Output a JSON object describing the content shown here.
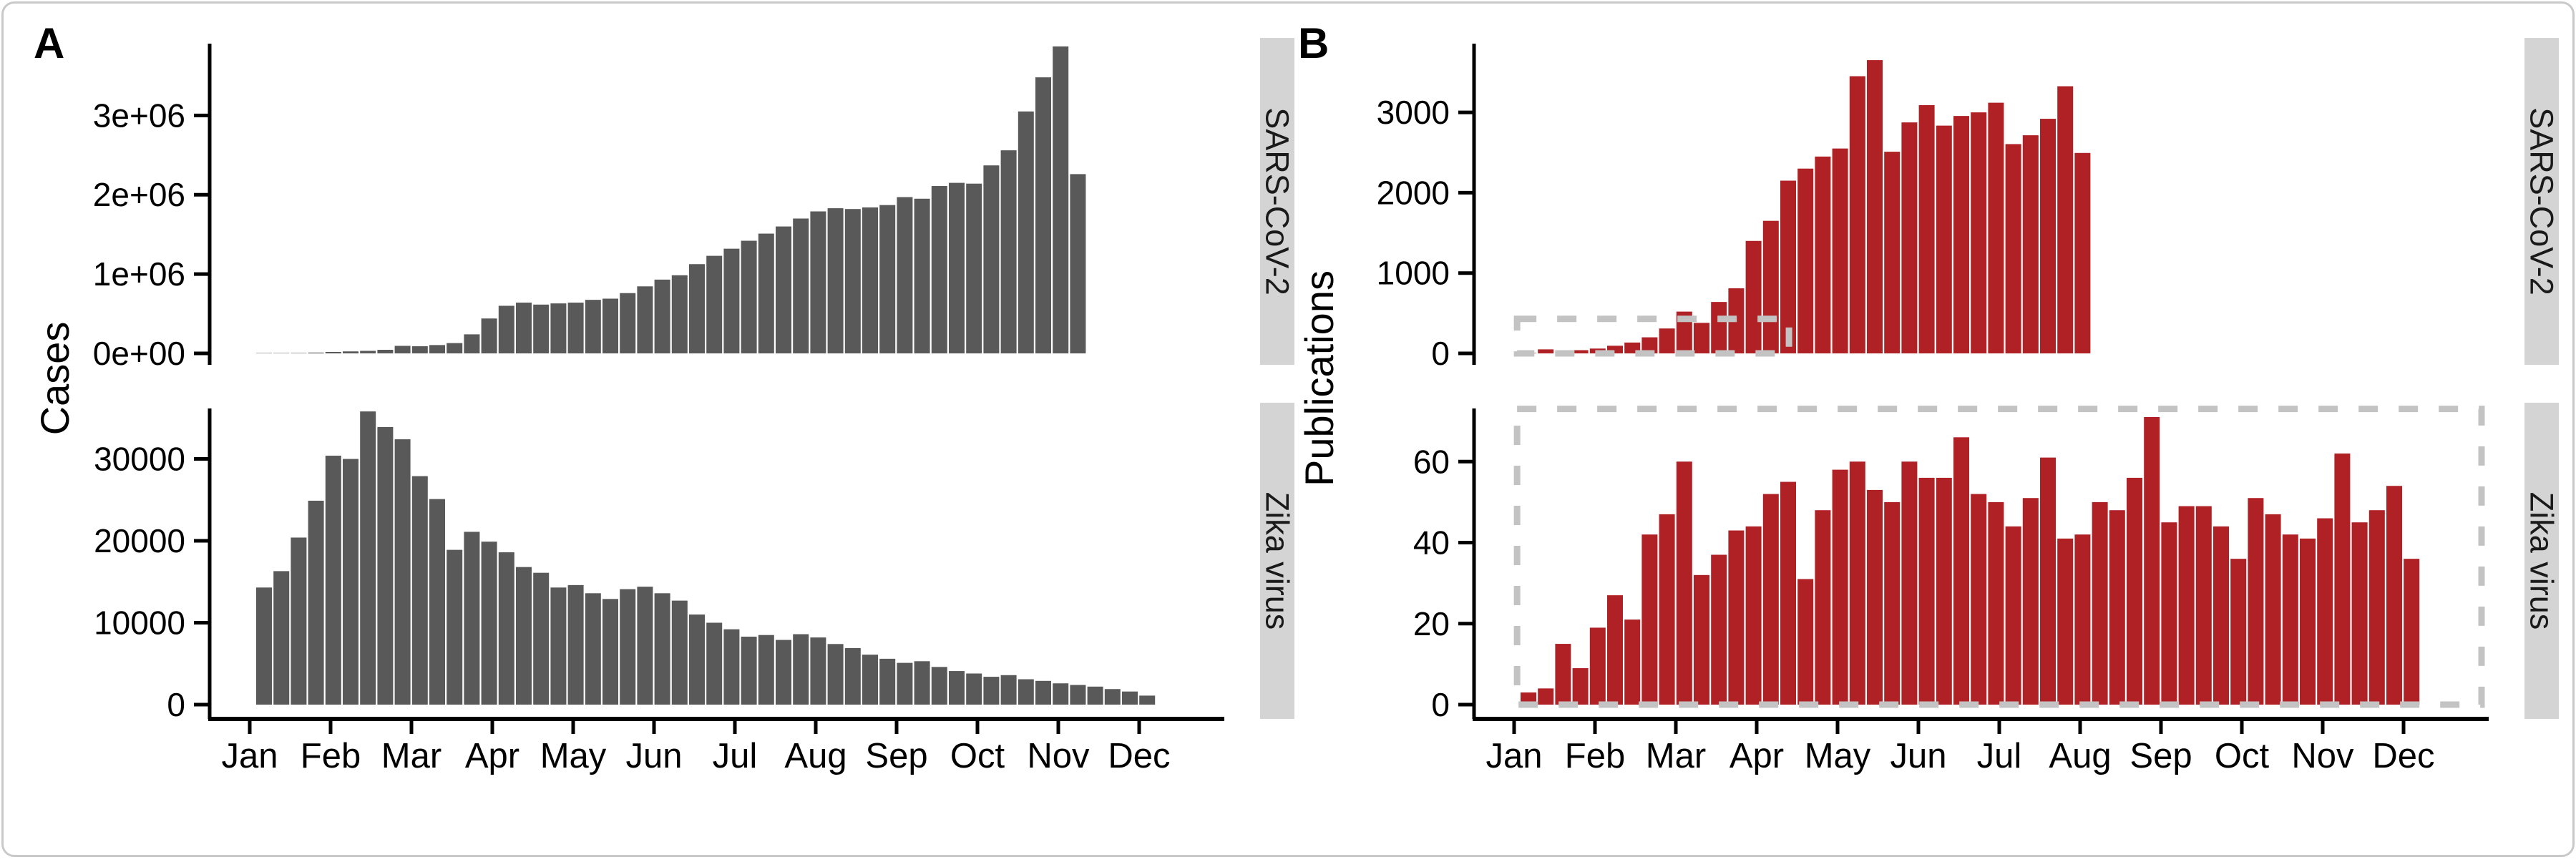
{
  "figure": {
    "panel_a_letter": "A",
    "panel_b_letter": "B",
    "cases_ylabel": "Cases",
    "publications_ylabel": "Publications",
    "months": [
      "Jan",
      "Feb",
      "Mar",
      "Apr",
      "May",
      "Jun",
      "Jul",
      "Aug",
      "Sep",
      "Oct",
      "Nov",
      "Dec"
    ],
    "colors": {
      "cases_bar": "#595959",
      "publications_bar": "#b02125",
      "strip_bg": "#d4d4d4",
      "strip_text": "#1a1a1a",
      "dashed_box": "#c3c3c3",
      "axis": "#000000",
      "text": "#000000",
      "card_border": "#c9c9c9"
    }
  },
  "chart_data": [
    {
      "id": "cases_sars_cov_2",
      "type": "bar",
      "panel": "A",
      "row": 0,
      "facet_label": "SARS-CoV-2",
      "ylabel": "Cases",
      "x_unit": "week",
      "xlabel_months": [
        "Jan",
        "Feb",
        "Mar",
        "Apr",
        "May",
        "Jun",
        "Jul",
        "Aug",
        "Sep",
        "Oct",
        "Nov",
        "Dec"
      ],
      "color": "#595959",
      "ylim": [
        0,
        3950000
      ],
      "grid": false,
      "yticks": [
        {
          "value": 0,
          "label": "0e+00"
        },
        {
          "value": 1000000,
          "label": "1e+06"
        },
        {
          "value": 2000000,
          "label": "2e+06"
        },
        {
          "value": 3000000,
          "label": "3e+06"
        }
      ],
      "values": [
        2000,
        3000,
        5000,
        10000,
        18000,
        25000,
        32000,
        45000,
        95000,
        90000,
        105000,
        130000,
        240000,
        440000,
        600000,
        640000,
        615000,
        630000,
        640000,
        675000,
        690000,
        760000,
        845000,
        930000,
        985000,
        1125000,
        1230000,
        1320000,
        1420000,
        1510000,
        1600000,
        1700000,
        1790000,
        1830000,
        1820000,
        1840000,
        1870000,
        1970000,
        1950000,
        2110000,
        2150000,
        2140000,
        2370000,
        2560000,
        3050000,
        3480000,
        3870000,
        2260000
      ]
    },
    {
      "id": "cases_zika_virus",
      "type": "bar",
      "panel": "A",
      "row": 1,
      "facet_label": "Zika virus",
      "ylabel": "Cases",
      "x_unit": "week",
      "xlabel_months": [
        "Jan",
        "Feb",
        "Mar",
        "Apr",
        "May",
        "Jun",
        "Jul",
        "Aug",
        "Sep",
        "Oct",
        "Nov",
        "Dec"
      ],
      "color": "#595959",
      "ylim": [
        0,
        36600
      ],
      "grid": false,
      "yticks": [
        {
          "value": 0,
          "label": "0"
        },
        {
          "value": 10000,
          "label": "10000"
        },
        {
          "value": 20000,
          "label": "20000"
        },
        {
          "value": 30000,
          "label": "30000"
        }
      ],
      "values": [
        14300,
        16300,
        20400,
        24900,
        30400,
        30000,
        35800,
        33900,
        32400,
        27900,
        25100,
        18900,
        21100,
        19900,
        18600,
        16800,
        16100,
        14300,
        14600,
        13600,
        12900,
        14100,
        14400,
        13600,
        12700,
        11000,
        10000,
        9200,
        8300,
        8500,
        7900,
        8600,
        8200,
        7400,
        6900,
        6100,
        5600,
        5100,
        5300,
        4600,
        4100,
        3800,
        3400,
        3600,
        3100,
        2900,
        2600,
        2400,
        2200,
        1900,
        1600,
        1100
      ]
    },
    {
      "id": "publications_sars_cov_2",
      "type": "bar",
      "panel": "B",
      "row": 0,
      "facet_label": "SARS-CoV-2",
      "ylabel": "Publications",
      "x_unit": "week",
      "xlabel_months": [
        "Jan",
        "Feb",
        "Mar",
        "Apr",
        "May",
        "Jun",
        "Jul",
        "Aug",
        "Sep",
        "Oct",
        "Nov",
        "Dec"
      ],
      "color": "#b02125",
      "ylim": [
        0,
        3900
      ],
      "grid": false,
      "yticks": [
        {
          "value": 0,
          "label": "0"
        },
        {
          "value": 1000,
          "label": "1000"
        },
        {
          "value": 2000,
          "label": "2000"
        },
        {
          "value": 3000,
          "label": "3000"
        }
      ],
      "values": [
        5,
        50,
        20,
        40,
        60,
        95,
        135,
        200,
        310,
        520,
        380,
        640,
        810,
        1400,
        1650,
        2150,
        2300,
        2450,
        2550,
        3450,
        3650,
        2510,
        2875,
        3090,
        2835,
        2955,
        3000,
        3120,
        2605,
        2715,
        2920,
        3325,
        2495
      ],
      "annotation_box": {
        "x_from_week": 0.8,
        "x_to_week": 16.5,
        "y_from": 0,
        "y_to": 430
      }
    },
    {
      "id": "publications_zika_virus",
      "type": "bar",
      "panel": "B",
      "row": 1,
      "facet_label": "Zika virus",
      "ylabel": "Publications",
      "x_unit": "week",
      "xlabel_months": [
        "Jan",
        "Feb",
        "Mar",
        "Apr",
        "May",
        "Jun",
        "Jul",
        "Aug",
        "Sep",
        "Oct",
        "Nov",
        "Dec"
      ],
      "color": "#b02125",
      "ylim": [
        0,
        74
      ],
      "grid": false,
      "yticks": [
        {
          "value": 0,
          "label": "0"
        },
        {
          "value": 20,
          "label": "20"
        },
        {
          "value": 40,
          "label": "40"
        },
        {
          "value": 60,
          "label": "60"
        }
      ],
      "values": [
        3,
        4,
        15,
        9,
        19,
        27,
        21,
        42,
        47,
        60,
        32,
        37,
        43,
        44,
        52,
        55,
        31,
        48,
        58,
        60,
        53,
        50,
        60,
        56,
        56,
        66,
        52,
        50,
        44,
        51,
        61,
        41,
        42,
        50,
        48,
        56,
        71,
        45,
        49,
        49,
        44,
        36,
        51,
        47,
        42,
        41,
        46,
        62,
        45,
        48,
        54,
        36
      ],
      "annotation_box": {
        "x_from_week": 0.8,
        "x_to_week": "plot_right",
        "y_from": 0,
        "y_to": 73
      }
    }
  ]
}
